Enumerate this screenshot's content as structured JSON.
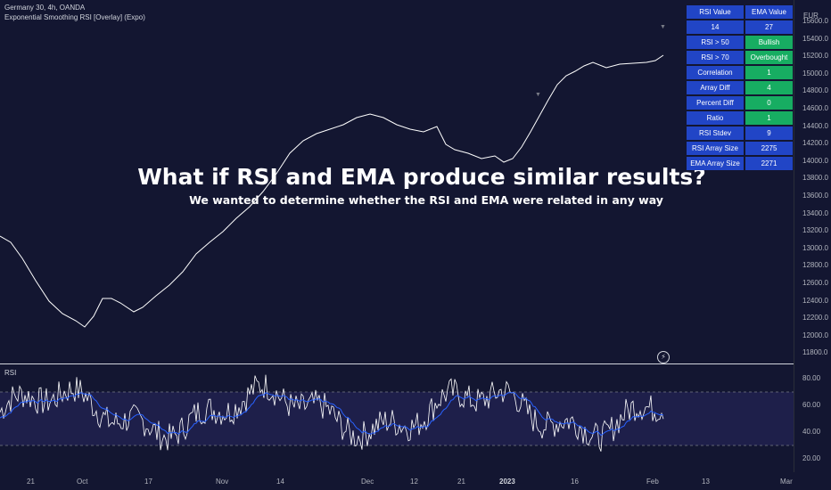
{
  "header": {
    "symbol_line": "Germany 30, 4h, OANDA",
    "indicator_line": "Exponential Smoothing RSI [Overlay] (Expo)"
  },
  "overlay": {
    "headline": "What if RSI and EMA produce similar results?",
    "subhead": "We wanted to determine whether the RSI and EMA were related in any way"
  },
  "stats_table": {
    "headers": [
      "RSI Value",
      "EMA Value"
    ],
    "rows": [
      {
        "label": "14",
        "value": "27",
        "highlight": false
      },
      {
        "label": "RSI > 50",
        "value": "Bullish",
        "highlight": true
      },
      {
        "label": "RSI > 70",
        "value": "Overbought",
        "highlight": true
      },
      {
        "label": "Correlation",
        "value": "1",
        "highlight": true
      },
      {
        "label": "Array Diff",
        "value": "4",
        "highlight": true
      },
      {
        "label": "Percent Diff",
        "value": "0",
        "highlight": true
      },
      {
        "label": "Ratio",
        "value": "1",
        "highlight": true
      },
      {
        "label": "RSI Stdev",
        "value": "9",
        "highlight": false
      },
      {
        "label": "RSI Array Size",
        "value": "2275",
        "highlight": false
      },
      {
        "label": "EMA Array Size",
        "value": "2271",
        "highlight": false
      }
    ]
  },
  "price_axis": {
    "currency": "EUR",
    "labels": [
      "15600.0",
      "15400.0",
      "15200.0",
      "15000.0",
      "14800.0",
      "14600.0",
      "14400.0",
      "14200.0",
      "14000.0",
      "13800.0",
      "13600.0",
      "13400.0",
      "13200.0",
      "13000.0",
      "12800.0",
      "12600.0",
      "12400.0",
      "12200.0",
      "12000.0",
      "11800.0"
    ]
  },
  "rsi_pane": {
    "label": "RSI",
    "axis_labels": [
      "80.00",
      "60.00",
      "40.00",
      "20.00"
    ],
    "upper_band": 70,
    "lower_band": 30
  },
  "time_axis": {
    "labels": [
      {
        "text": "21",
        "bold": false
      },
      {
        "text": "Oct",
        "bold": false
      },
      {
        "text": "17",
        "bold": false
      },
      {
        "text": "Nov",
        "bold": false
      },
      {
        "text": "14",
        "bold": false
      },
      {
        "text": "Dec",
        "bold": false
      },
      {
        "text": "12",
        "bold": false
      },
      {
        "text": "21",
        "bold": false
      },
      {
        "text": "2023",
        "bold": true
      },
      {
        "text": "16",
        "bold": false
      },
      {
        "text": "Feb",
        "bold": false
      },
      {
        "text": "13",
        "bold": false
      },
      {
        "text": "Mar",
        "bold": false
      }
    ]
  },
  "colors": {
    "background": "#131631",
    "price_line": "#ffffff",
    "rsi_line": "#ffffff",
    "rsi_ema_line": "#2962ff",
    "band_fill": "#1e1f4a",
    "table_blue": "#2145c6",
    "table_green": "#17ad62"
  },
  "icons": {
    "marker": "triangle-down-icon",
    "lightning": "lightning-icon"
  }
}
